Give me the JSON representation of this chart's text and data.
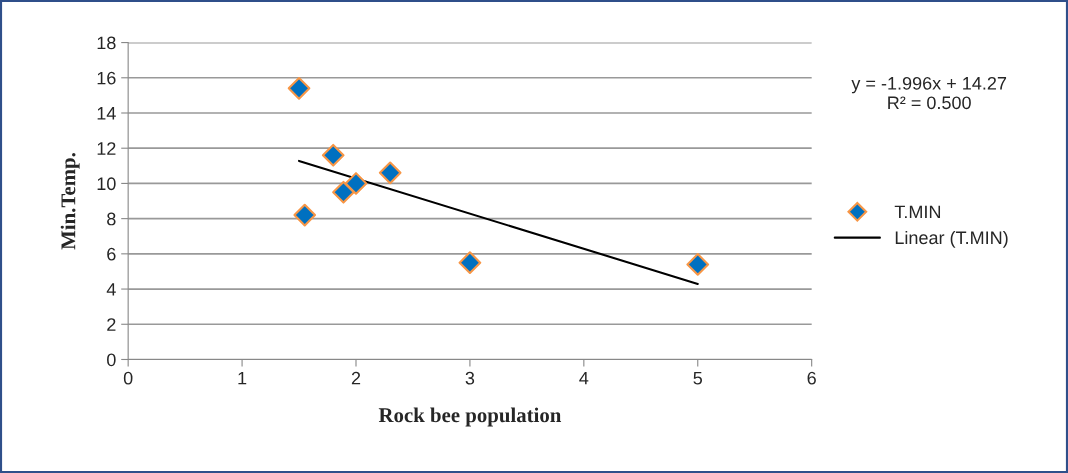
{
  "chart_data": {
    "type": "scatter",
    "xlabel": "Rock bee population",
    "ylabel": "Min.Temp.",
    "annotations": [
      "y = -1.996x + 14.27\nR² = 0.500"
    ],
    "series": [
      {
        "name": "T.MIN",
        "color": "#0070c0",
        "marker": "diamond",
        "x": [
          1.5,
          1.55,
          1.8,
          1.89,
          2.0,
          2.3,
          3.0,
          5.0
        ],
        "values": [
          15.4,
          8.2,
          11.6,
          9.5,
          10.0,
          10.6,
          5.5,
          5.4
        ]
      },
      {
        "name": "Linear (T.MIN)",
        "type": "line",
        "color": "#000000",
        "line_style": "solid",
        "marker": "none",
        "x": [
          1.5,
          5.0
        ],
        "values": [
          11.28,
          4.29
        ]
      }
    ],
    "xlim": [
      0,
      6
    ],
    "xticks": [
      0,
      1,
      2,
      3,
      4,
      5,
      6
    ],
    "ylim": [
      0,
      18
    ],
    "yticks": [
      0,
      2,
      4,
      6,
      8,
      10,
      12,
      14,
      16,
      18
    ],
    "grid": "y",
    "legend": "right"
  }
}
